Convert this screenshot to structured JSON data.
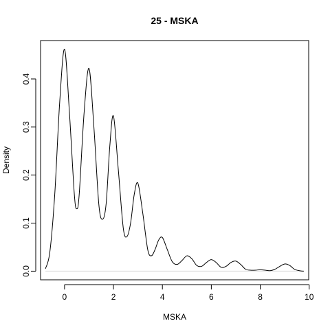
{
  "chart_data": {
    "type": "line",
    "title": "25 - MSKA",
    "xlabel": "MSKA",
    "ylabel": "Density",
    "xlim": [
      -0.98,
      9.98
    ],
    "ylim": [
      -0.018,
      0.48
    ],
    "xticks": [
      0,
      2,
      4,
      6,
      8,
      10
    ],
    "yticks": [
      0.0,
      0.1,
      0.2,
      0.3,
      0.4
    ],
    "ytick_labels": [
      "0.0",
      "0.1",
      "0.2",
      "0.3",
      "0.4"
    ],
    "grid": false,
    "series": [
      {
        "x": [
          -0.78,
          -0.6,
          -0.4,
          -0.2,
          0.0,
          0.2,
          0.4,
          0.5,
          0.6,
          0.8,
          1.0,
          1.2,
          1.4,
          1.55,
          1.7,
          1.85,
          2.0,
          2.2,
          2.4,
          2.55,
          2.7,
          2.85,
          3.0,
          3.2,
          3.4,
          3.55,
          3.7,
          3.85,
          4.0,
          4.2,
          4.4,
          4.6,
          4.8,
          5.0,
          5.2,
          5.4,
          5.6,
          5.8,
          6.0,
          6.2,
          6.4,
          6.6,
          6.8,
          7.0,
          7.2,
          7.4,
          7.6,
          7.8,
          8.0,
          8.2,
          8.4,
          8.6,
          8.8,
          9.0,
          9.2,
          9.4,
          9.6,
          9.78
        ],
        "y": [
          0.005,
          0.04,
          0.16,
          0.35,
          0.462,
          0.33,
          0.16,
          0.13,
          0.16,
          0.33,
          0.422,
          0.3,
          0.14,
          0.108,
          0.14,
          0.26,
          0.323,
          0.21,
          0.09,
          0.072,
          0.1,
          0.16,
          0.183,
          0.12,
          0.045,
          0.032,
          0.045,
          0.065,
          0.07,
          0.045,
          0.02,
          0.014,
          0.022,
          0.032,
          0.026,
          0.012,
          0.01,
          0.018,
          0.024,
          0.018,
          0.008,
          0.01,
          0.018,
          0.021,
          0.014,
          0.004,
          0.002,
          0.002,
          0.003,
          0.002,
          0.001,
          0.004,
          0.01,
          0.015,
          0.012,
          0.004,
          0.001,
          0.0
        ]
      }
    ]
  }
}
